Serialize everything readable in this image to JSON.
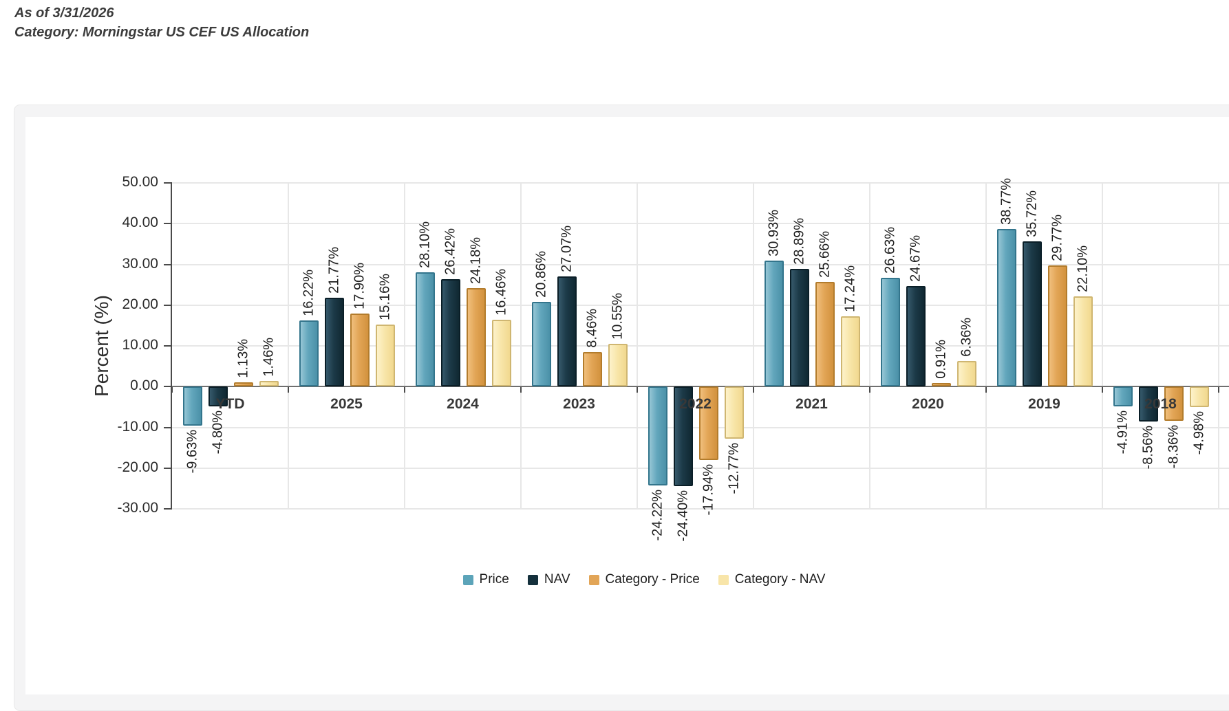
{
  "header": {
    "as_of": "As of 3/31/2026",
    "category": "Category: Morningstar US CEF US Allocation"
  },
  "chart_data": {
    "type": "bar",
    "categories": [
      "YTD",
      "2025",
      "2024",
      "2023",
      "2022",
      "2021",
      "2020",
      "2019",
      "2018"
    ],
    "series": [
      {
        "name": "Price",
        "color": "#5ca4b9",
        "values": [
          -9.63,
          16.22,
          28.1,
          20.86,
          -24.22,
          30.93,
          26.63,
          38.77,
          -4.91
        ]
      },
      {
        "name": "NAV",
        "color": "#14303c",
        "values": [
          -4.8,
          21.77,
          26.42,
          27.07,
          -24.4,
          28.89,
          24.67,
          35.72,
          -8.56
        ]
      },
      {
        "name": "Category - Price",
        "color": "#e2a557",
        "values": [
          1.13,
          17.9,
          24.18,
          8.46,
          -17.94,
          25.66,
          0.91,
          29.77,
          -8.36
        ]
      },
      {
        "name": "Category - NAV",
        "color": "#f8e5a9",
        "values": [
          1.46,
          15.16,
          16.46,
          10.55,
          -12.77,
          17.24,
          6.36,
          22.1,
          -4.98
        ]
      }
    ],
    "ylabel": "Percent (%)",
    "ylim": [
      -30,
      50
    ],
    "ytick_step": 10,
    "ytick_labels": [
      "50.00",
      "40.00",
      "30.00",
      "20.00",
      "10.00",
      "0.00",
      "-10.00",
      "-20.00",
      "-30.00"
    ],
    "value_label_suffix": "%",
    "value_label_decimals": 2,
    "legend_position": "bottom",
    "grid": true
  }
}
